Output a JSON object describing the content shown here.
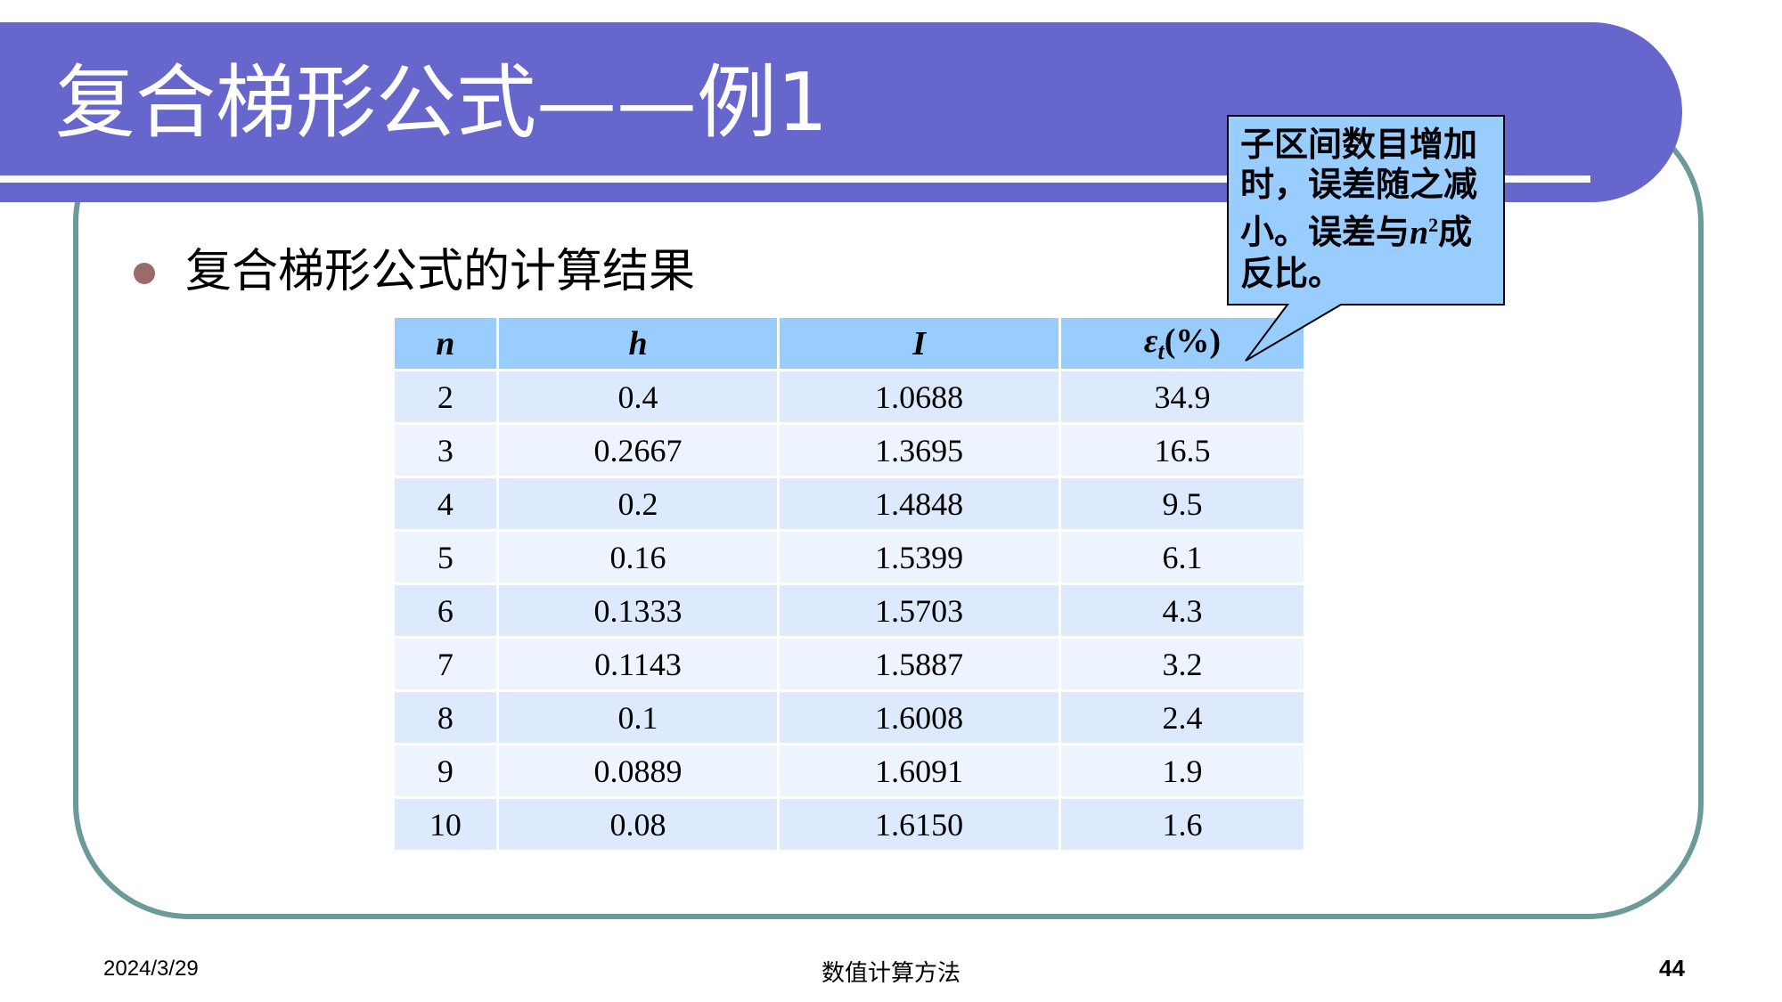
{
  "slide": {
    "title": "复合梯形公式——例1",
    "bullet": "复合梯形公式的计算结果"
  },
  "table": {
    "headers": [
      "n",
      "h",
      "I",
      "ε",
      "t",
      "(%)"
    ],
    "rows": [
      [
        "2",
        "0.4",
        "1.0688",
        "34.9"
      ],
      [
        "3",
        "0.2667",
        "1.3695",
        "16.5"
      ],
      [
        "4",
        "0.2",
        "1.4848",
        "9.5"
      ],
      [
        "5",
        "0.16",
        "1.5399",
        "6.1"
      ],
      [
        "6",
        "0.1333",
        "1.5703",
        "4.3"
      ],
      [
        "7",
        "0.1143",
        "1.5887",
        "3.2"
      ],
      [
        "8",
        "0.1",
        "1.6008",
        "2.4"
      ],
      [
        "9",
        "0.0889",
        "1.6091",
        "1.9"
      ],
      [
        "10",
        "0.08",
        "1.6150",
        "1.6"
      ]
    ]
  },
  "callout": {
    "line1": "子区间数目增加",
    "line2": "时，误差随之减",
    "line3_a": "小。误差与",
    "line3_var": "n",
    "line3_sup": "2",
    "line3_b": "成",
    "line4": "反比。"
  },
  "footer": {
    "date": "2024/3/29",
    "center": "数值计算方法",
    "page": "44"
  },
  "colors": {
    "title_band": "#6666cc",
    "frame": "#6b9a98",
    "header_cell": "#99ccff",
    "row_odd": "#dde9fc",
    "row_even": "#eef4fe",
    "callout_fill": "#99ccff",
    "bullet": "#9b6b6b"
  }
}
